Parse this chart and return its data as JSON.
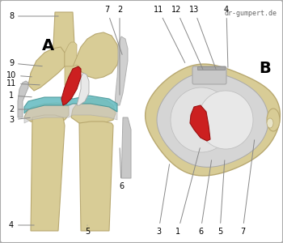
{
  "bg_color": "#f2f2f2",
  "border_color": "#aaaaaa",
  "watermark": "dr-gumpert.de",
  "label_A": "A",
  "label_B": "B",
  "bone_color": "#d8cc96",
  "bone_edge": "#b8a870",
  "meniscus_color": "#6bbec4",
  "ligament_red": "#cc2020",
  "ligament_red_edge": "#991010",
  "gray_light": "#c8c8c8",
  "gray_medium": "#a8a8a8",
  "gray_dark": "#888888",
  "white_struct": "#e8e8e8",
  "line_color": "#888888",
  "font_size": 7,
  "figsize": [
    3.5,
    3.0
  ],
  "dpi": 100
}
